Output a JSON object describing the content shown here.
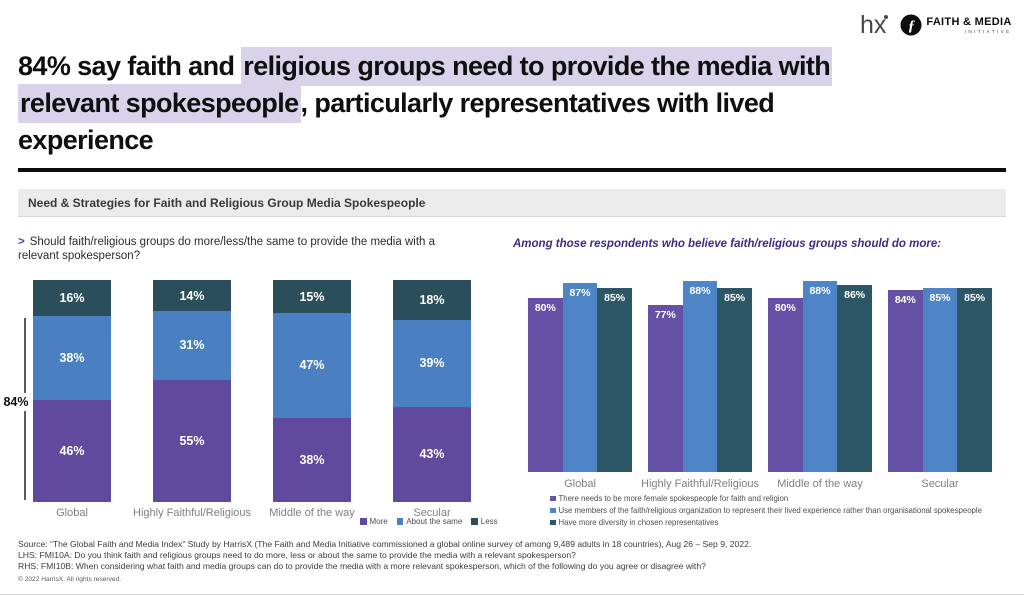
{
  "logos": {
    "harrisx": "hx",
    "fmi_name": "FAITH & MEDIA",
    "fmi_sub": "INITIATIVE"
  },
  "title": {
    "line1_pre": "84% say faith and ",
    "line1_hl": "religious groups need to provide the media with",
    "line2_hl": "relevant spokespeople",
    "line2_post": ", particularly representatives with lived",
    "line3": "experience",
    "highlight_color": "#d8d3ea"
  },
  "section_bar": {
    "label": "Need & Strategies for Faith and Religious Group Media Spokespeople"
  },
  "lhs": {
    "question_marker": ">",
    "question": "Should faith/religious groups do more/less/the same to provide the media with a relevant spokesperson?",
    "bracket_label": "84%"
  },
  "rhs": {
    "title": "Among those respondents who believe faith/religious groups should do more:"
  },
  "footer": {
    "source": "Source: “The Global Faith and Media Index” Study by HarrisX (The Faith and Media Initiative commissioned a global online survey of among 9,489 adults in 18 countries), Aug 26 – Sep 9, 2022.",
    "lhs_note": "LHS: FMI10A: Do you think faith and religious groups need to do more, less or about the same to provide the media with a relevant spokesperson?",
    "rhs_note": "RHS: FMI10B: When considering what faith and media groups can do to provide the media with a more relevant spokesperson, which of the following do you agree or disagree with?",
    "copyright": "© 2022 HarrisX. All rights reserved."
  },
  "chart_data": [
    {
      "type": "bar",
      "subtype": "stacked-100",
      "title": "Should faith/religious groups do more/less/the same to provide the media with a relevant spokesperson?",
      "categories": [
        "Global",
        "Highly Faithful/Religious",
        "Middle of the way",
        "Secular"
      ],
      "series": [
        {
          "name": "More",
          "color": "#5f4a9e",
          "values": [
            46,
            55,
            38,
            43
          ]
        },
        {
          "name": "About the same",
          "color": "#4a80c2",
          "values": [
            38,
            31,
            47,
            39
          ]
        },
        {
          "name": "Less",
          "color": "#2a4f5b",
          "values": [
            16,
            14,
            15,
            18
          ]
        }
      ],
      "annotation": {
        "label": "84%",
        "category": "Global"
      },
      "legend_position": "bottom-right",
      "value_suffix": "%",
      "ylim": [
        0,
        100
      ]
    },
    {
      "type": "bar",
      "subtype": "grouped",
      "title": "Among those respondents who believe faith/religious groups should do more:",
      "categories": [
        "Global",
        "Highly Faithful/Religious",
        "Middle of the way",
        "Secular"
      ],
      "series": [
        {
          "name": "There needs to be more female spokespeople for faith and religion",
          "color": "#6451a6",
          "values": [
            80,
            77,
            80,
            84
          ]
        },
        {
          "name": "Use members of the faith/religious organization to represent their lived experience rather than organisational spokespeople",
          "color": "#4e85c6",
          "values": [
            87,
            88,
            88,
            85
          ]
        },
        {
          "name": "Have more diversity in chosen representatives",
          "color": "#2d5766",
          "values": [
            85,
            85,
            86,
            85
          ]
        }
      ],
      "legend_position": "bottom",
      "value_suffix": "%",
      "ylim": [
        0,
        100
      ]
    }
  ]
}
